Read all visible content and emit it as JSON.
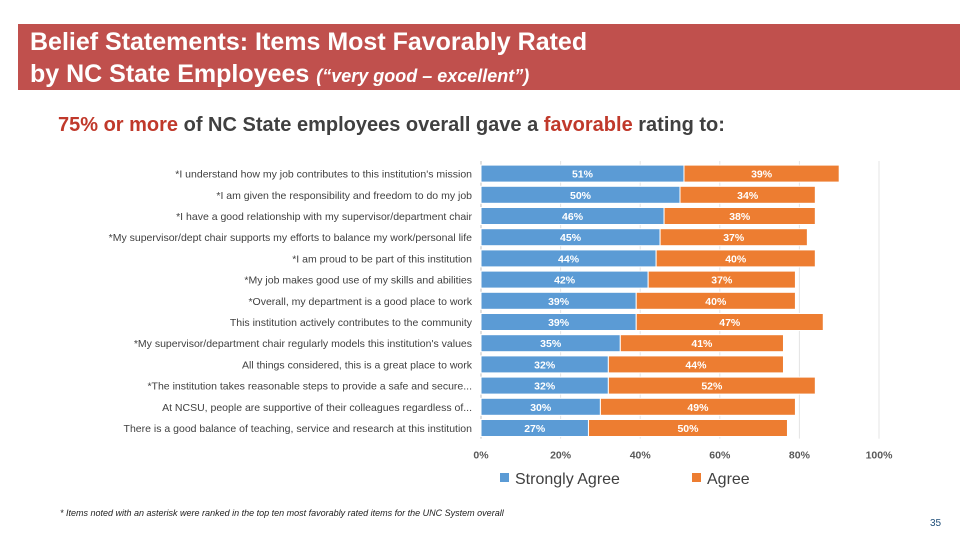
{
  "header": {
    "title_line1": "Belief Statements: Items Most Favorably Rated",
    "title_line2": "by NC State Employees",
    "title_qualifier": "(“very good – excellent”)"
  },
  "headline": {
    "part1": "75% or more",
    "part2": " of NC State employees overall gave a ",
    "part3": "favorable",
    "part4": " rating to:"
  },
  "chart_data": {
    "type": "bar",
    "orientation": "horizontal",
    "stacked": true,
    "categories": [
      "*I understand how my job contributes to this institution's mission",
      "*I am given the responsibility and freedom to do my job",
      "*I have a good relationship with my supervisor/department chair",
      "*My supervisor/dept chair supports my efforts to balance my work/personal life",
      "*I am proud to be part of this institution",
      "*My job makes good use of my skills and abilities",
      "*Overall, my department is a good place to work",
      "This institution actively contributes to the community",
      "*My supervisor/department chair regularly models this institution's values",
      "All things considered, this is a great place to work",
      "*The institution takes reasonable steps to provide a safe and secure...",
      "At NCSU, people are supportive of their colleagues regardless of...",
      "There is a good balance of teaching, service and research at this institution"
    ],
    "series": [
      {
        "name": "Strongly Agree",
        "color": "#5b9bd5",
        "values": [
          51,
          50,
          46,
          45,
          44,
          42,
          39,
          39,
          35,
          32,
          32,
          30,
          27
        ]
      },
      {
        "name": "Agree",
        "color": "#ed7d31",
        "values": [
          39,
          34,
          38,
          37,
          40,
          37,
          40,
          47,
          41,
          44,
          52,
          49,
          50
        ]
      }
    ],
    "xlim": [
      0,
      100
    ],
    "xticks": [
      "0%",
      "20%",
      "40%",
      "60%",
      "80%",
      "100%"
    ],
    "legend_position": "bottom"
  },
  "footnote": "* Items noted with an asterisk were ranked in the top ten most favorably rated items for the UNC System overall",
  "page_number": "35"
}
